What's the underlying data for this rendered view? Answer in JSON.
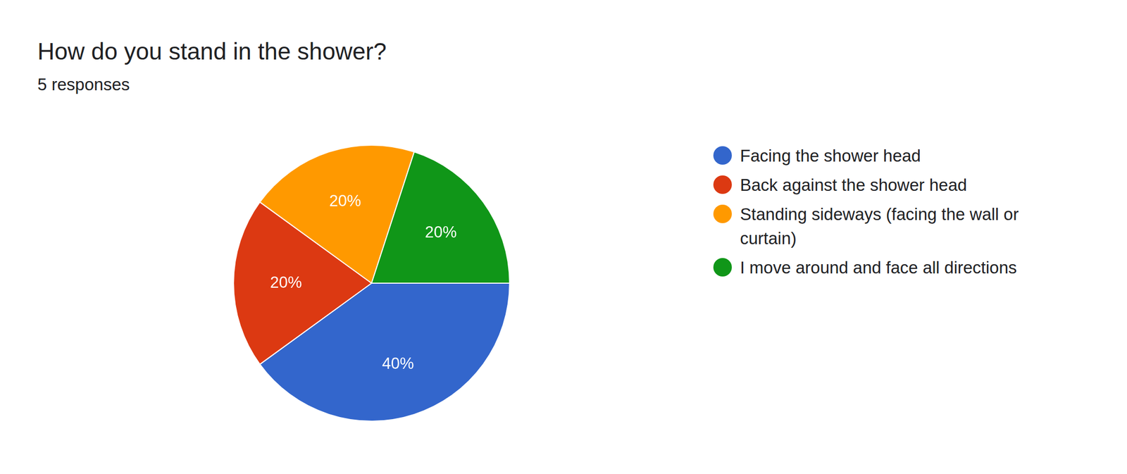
{
  "chart_data": {
    "type": "pie",
    "title": "How do you stand in the shower?",
    "subtitle": "5 responses",
    "categories": [
      "Facing the shower head",
      "Back against the shower head",
      "Standing sideways (facing the wall or curtain)",
      "I move around and face all directions"
    ],
    "values": [
      40,
      20,
      20,
      20
    ],
    "value_labels": [
      "40%",
      "20%",
      "20%",
      "20%"
    ],
    "colors": [
      "#3366cc",
      "#dc3912",
      "#ff9900",
      "#109618"
    ],
    "data_labels": true,
    "legend": "right"
  }
}
